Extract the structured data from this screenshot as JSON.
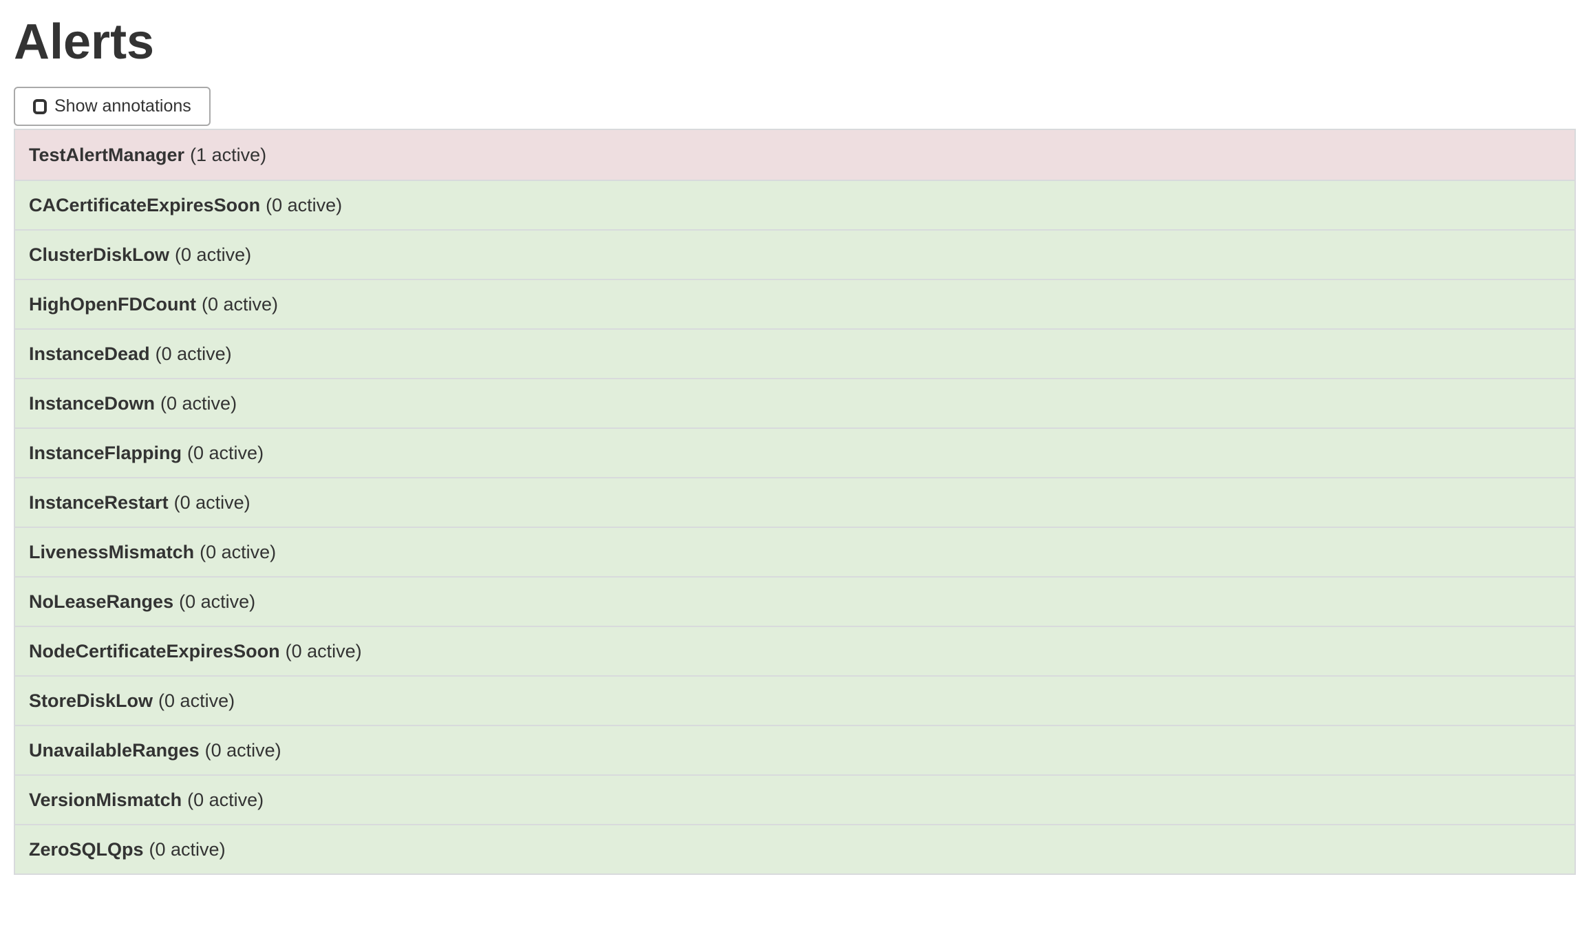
{
  "page": {
    "title": "Alerts"
  },
  "toolbar": {
    "show_annotations_label": "Show annotations",
    "checkbox_checked": false
  },
  "colors": {
    "text": "#333333",
    "active_bg": "#eedee0",
    "inactive_bg": "#e1eedb",
    "row_border": "#d8dadc",
    "button_border": "#a9a9a9"
  },
  "alerts": [
    {
      "name": "TestAlertManager",
      "active_count": 1,
      "count_label": "(1 active)"
    },
    {
      "name": "CACertificateExpiresSoon",
      "active_count": 0,
      "count_label": "(0 active)"
    },
    {
      "name": "ClusterDiskLow",
      "active_count": 0,
      "count_label": "(0 active)"
    },
    {
      "name": "HighOpenFDCount",
      "active_count": 0,
      "count_label": "(0 active)"
    },
    {
      "name": "InstanceDead",
      "active_count": 0,
      "count_label": "(0 active)"
    },
    {
      "name": "InstanceDown",
      "active_count": 0,
      "count_label": "(0 active)"
    },
    {
      "name": "InstanceFlapping",
      "active_count": 0,
      "count_label": "(0 active)"
    },
    {
      "name": "InstanceRestart",
      "active_count": 0,
      "count_label": "(0 active)"
    },
    {
      "name": "LivenessMismatch",
      "active_count": 0,
      "count_label": "(0 active)"
    },
    {
      "name": "NoLeaseRanges",
      "active_count": 0,
      "count_label": "(0 active)"
    },
    {
      "name": "NodeCertificateExpiresSoon",
      "active_count": 0,
      "count_label": "(0 active)"
    },
    {
      "name": "StoreDiskLow",
      "active_count": 0,
      "count_label": "(0 active)"
    },
    {
      "name": "UnavailableRanges",
      "active_count": 0,
      "count_label": "(0 active)"
    },
    {
      "name": "VersionMismatch",
      "active_count": 0,
      "count_label": "(0 active)"
    },
    {
      "name": "ZeroSQLQps",
      "active_count": 0,
      "count_label": "(0 active)"
    }
  ]
}
